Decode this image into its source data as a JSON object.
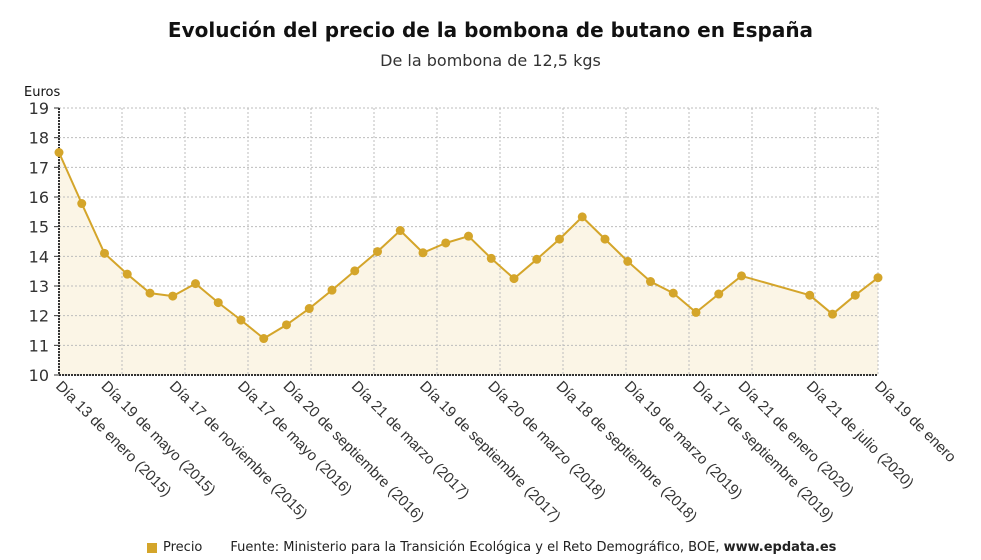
{
  "title": "Evolución del precio de la bombona de butano en España",
  "subtitle": "De la bombona de 12,5 kgs",
  "colors": {
    "line": "#d4a52a",
    "fill": "#fbf5e6",
    "grid": "#bdbdbd"
  },
  "legend": {
    "label": "Precio"
  },
  "source": {
    "text": "Fuente: Ministerio para la Transición Ecológica y el Reto Demográfico, BOE, ",
    "site": "www.epdata.es"
  },
  "chart_data": {
    "type": "area",
    "title": "Evolución del precio de la bombona de butano en España",
    "subtitle": "De la bombona de 12,5 kgs",
    "ylabel": "Euros",
    "ylim": [
      10,
      19
    ],
    "yticks": [
      10,
      11,
      12,
      13,
      14,
      15,
      16,
      17,
      18,
      19
    ],
    "grid": true,
    "legend": "bottom-left",
    "series": [
      {
        "name": "Precio",
        "x": [
          "2015-01",
          "2015-03",
          "2015-05",
          "2015-07",
          "2015-09",
          "2015-11",
          "2016-01",
          "2016-03",
          "2016-05",
          "2016-07",
          "2016-09",
          "2016-11",
          "2017-01",
          "2017-03",
          "2017-05",
          "2017-07",
          "2017-09",
          "2017-11",
          "2018-01",
          "2018-03",
          "2018-05",
          "2018-07",
          "2018-09",
          "2018-11",
          "2019-01",
          "2019-03",
          "2019-05",
          "2019-07",
          "2019-09",
          "2019-11",
          "2020-01",
          "2020-07",
          "2020-09",
          "2020-11",
          "2021-01"
        ],
        "values": [
          17.5,
          15.78,
          14.1,
          13.4,
          12.76,
          12.66,
          13.08,
          12.44,
          11.85,
          11.23,
          11.69,
          12.24,
          12.86,
          13.51,
          14.16,
          14.87,
          14.12,
          14.45,
          14.68,
          13.93,
          13.25,
          13.9,
          14.58,
          15.33,
          14.58,
          13.83,
          13.15,
          12.76,
          12.11,
          12.73,
          13.34,
          12.69,
          12.05,
          12.69,
          13.28
        ]
      }
    ],
    "xtick_labels": [
      {
        "x": "2015-01",
        "line1": "Día 13 de enero",
        "line2": "(2015)"
      },
      {
        "x": "2015-05",
        "line1": "Día 19 de mayo",
        "line2": "(2015)"
      },
      {
        "x": "2015-11",
        "line1": "Día 17 de noviembre",
        "line2": "(2015)"
      },
      {
        "x": "2016-05",
        "line1": "Día 17 de mayo",
        "line2": "(2016)"
      },
      {
        "x": "2016-09",
        "line1": "Día 20 de septiembre",
        "line2": "(2016)"
      },
      {
        "x": "2017-03",
        "line1": "Día 21 de marzo",
        "line2": "(2017)"
      },
      {
        "x": "2017-09",
        "line1": "Día 19 de septiembre",
        "line2": "(2017)"
      },
      {
        "x": "2018-03",
        "line1": "Día 20 de marzo",
        "line2": "(2018)"
      },
      {
        "x": "2018-09",
        "line1": "Día 18 de septiembre",
        "line2": "(2018)"
      },
      {
        "x": "2019-03",
        "line1": "Día 19 de marzo",
        "line2": "(2019)"
      },
      {
        "x": "2019-09",
        "line1": "Día 17 de septiembre",
        "line2": "(2019)"
      },
      {
        "x": "2020-01",
        "line1": "Día 21 de enero",
        "line2": "(2020)"
      },
      {
        "x": "2020-07",
        "line1": "Día 21 de julio",
        "line2": "(2020)"
      },
      {
        "x": "2021-01",
        "line1": "Día 19 de enero",
        "line2": ""
      }
    ]
  }
}
